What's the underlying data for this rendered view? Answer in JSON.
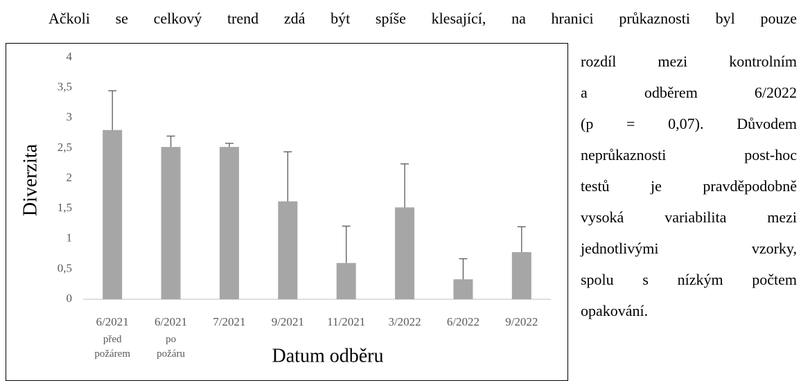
{
  "paragraph_first_line": "Ačkoli se celkový trend zdá být spíše klesající, na hranici průkaznosti byl pouze",
  "side_lines": [
    "rozdíl mezi kontrolním",
    "a odběrem 6/2022",
    "(p = 0,07). Důvodem",
    "neprůkaznosti post-hoc",
    "testů je pravděpodobně",
    "vysoká variabilita mezi",
    "jednotlivými vzorky,",
    "spolu s nízkým počtem",
    "opakování."
  ],
  "chart_data": {
    "type": "bar",
    "ylabel": "Diverzita",
    "xlabel": "Datum odběru",
    "categories": [
      "6/2021 před požárem",
      "6/2021 po požáru",
      "7/2021",
      "9/2021",
      "11/2021",
      "3/2022",
      "6/2022",
      "9/2022"
    ],
    "values": [
      2.8,
      2.52,
      2.52,
      1.62,
      0.6,
      1.52,
      0.33,
      0.78
    ],
    "errors": [
      0.65,
      0.18,
      0.06,
      0.82,
      0.61,
      0.72,
      0.34,
      0.42
    ],
    "color": "#a6a6a6",
    "error_color": "#595959",
    "ylim": [
      0,
      4
    ],
    "yticks": [
      0,
      {
        "value": 0.5,
        "label": "0,5"
      },
      1,
      {
        "value": 1.5,
        "label": "1,5"
      },
      2,
      {
        "value": 2.5,
        "label": "2,5"
      },
      3,
      {
        "value": 3.5,
        "label": "3,5"
      },
      4
    ],
    "grid": false
  }
}
